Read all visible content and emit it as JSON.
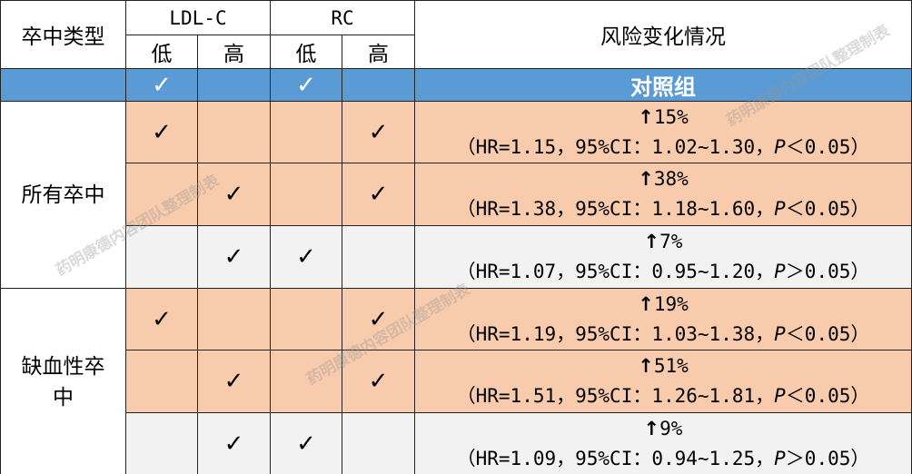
{
  "header": {
    "stroke_type": "卒中类型",
    "ldl": "LDL-C",
    "rc": "RC",
    "risk": "风险变化情况",
    "low": "低",
    "high": "高"
  },
  "control": {
    "check": "✓",
    "label": "对照组",
    "color": "#5B9BD5"
  },
  "groups": [
    {
      "name": "所有卒中"
    },
    {
      "name": "缺血性卒中"
    }
  ],
  "rows": [
    {
      "ldl_low": "✓",
      "ldl_high": "",
      "rc_low": "",
      "rc_high": "✓",
      "arrow": "↑",
      "pct": "15%",
      "stats": "（HR=1.15，95%CI：1.02~1.30，",
      "p": "P",
      "p_rest": "＜0.05）",
      "color": "#F8CBAD"
    },
    {
      "ldl_low": "",
      "ldl_high": "✓",
      "rc_low": "",
      "rc_high": "✓",
      "arrow": "↑",
      "pct": "38%",
      "stats": "（HR=1.38，95%CI：1.18~1.60，",
      "p": "P",
      "p_rest": "＜0.05）",
      "color": "#F8CBAD"
    },
    {
      "ldl_low": "",
      "ldl_high": "✓",
      "rc_low": "✓",
      "rc_high": "",
      "arrow": "↑",
      "pct": "7%",
      "stats": "（HR=1.07，95%CI：0.95~1.20，",
      "p": "P",
      "p_rest": "＞0.05）",
      "color": "#F2F2F2"
    },
    {
      "ldl_low": "✓",
      "ldl_high": "",
      "rc_low": "",
      "rc_high": "✓",
      "arrow": "↑",
      "pct": "19%",
      "stats": "（HR=1.19，95%CI：1.03~1.38，",
      "p": "P",
      "p_rest": "＜0.05）",
      "color": "#F8CBAD"
    },
    {
      "ldl_low": "",
      "ldl_high": "✓",
      "rc_low": "",
      "rc_high": "✓",
      "arrow": "↑",
      "pct": "51%",
      "stats": "（HR=1.51，95%CI：1.26~1.81，",
      "p": "P",
      "p_rest": "＜0.05）",
      "color": "#F8CBAD"
    },
    {
      "ldl_low": "",
      "ldl_high": "✓",
      "rc_low": "✓",
      "rc_high": "",
      "arrow": "↑",
      "pct": "9%",
      "stats": "（HR=1.09，95%CI：0.94~1.25，",
      "p": "P",
      "p_rest": "＞0.05）",
      "color": "#F2F2F2"
    }
  ],
  "watermark": "药明康德内容团队整理制表"
}
